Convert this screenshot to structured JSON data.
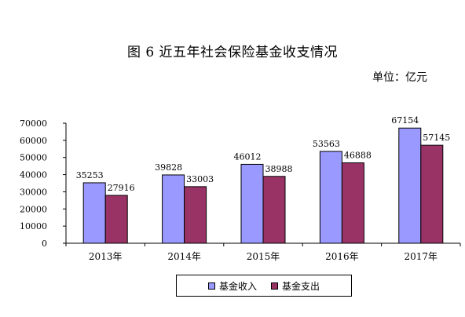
{
  "title": "图 6    近五年社会保险基金收支情况",
  "unit": "单位：亿元",
  "colors": {
    "income": "#9999ff",
    "expense": "#993366"
  },
  "chart_data": {
    "type": "bar",
    "title": "图 6    近五年社会保险基金收支情况",
    "xlabel": "",
    "ylabel": "",
    "ylim": [
      0,
      70000
    ],
    "yticks": [
      0,
      10000,
      20000,
      30000,
      40000,
      50000,
      60000,
      70000
    ],
    "grid": false,
    "legend_position": "bottom",
    "categories": [
      "2013年",
      "2014年",
      "2015年",
      "2016年",
      "2017年"
    ],
    "series": [
      {
        "name": "基金收入",
        "values": [
          35253,
          39828,
          46012,
          53563,
          67154
        ]
      },
      {
        "name": "基金支出",
        "values": [
          27916,
          33003,
          38988,
          46888,
          57145
        ]
      }
    ]
  }
}
